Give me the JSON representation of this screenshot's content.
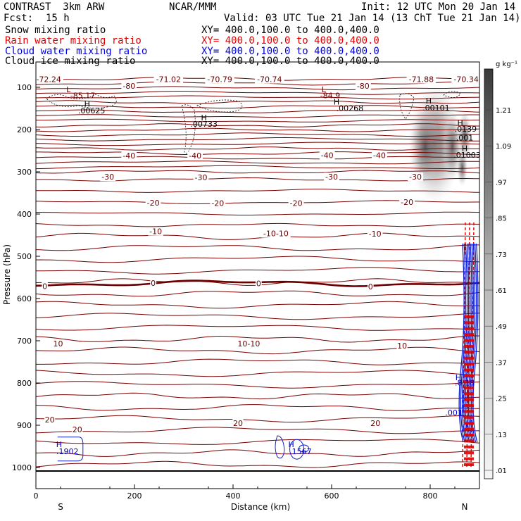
{
  "header": {
    "model": "CONTRAST  3km ARW",
    "org": "NCAR/MMM",
    "init": "Init: 12 UTC Mon 20 Jan 14",
    "fcst_label": "Fcst:",
    "fcst_value": "15 h",
    "valid": "Valid: 03 UTC Tue 21 Jan 14 (13 ChT Tue 21 Jan 14)"
  },
  "fields": [
    {
      "name": "Snow mixing ratio",
      "xy": "XY= 400.0,100.0 to 400.0,400.0",
      "color": "#000000"
    },
    {
      "name": "Rain water mixing ratio",
      "xy": "XY= 400.0,100.0 to 400.0,400.0",
      "color": "#e00000"
    },
    {
      "name": "Cloud water mixing ratio",
      "xy": "XY= 400.0,100.0 to 400.0,400.0",
      "color": "#0000e0"
    },
    {
      "name": "Cloud ice mixing ratio",
      "xy": "XY= 400.0,100.0 to 400.0,400.0",
      "color": "#000000"
    }
  ],
  "chart_data": {
    "type": "contour",
    "xlabel": "Distance (km)",
    "ylabel": "Pressure (hPa)",
    "xlim": [
      0,
      900
    ],
    "ylim": [
      1050,
      40
    ],
    "x_ticks": [
      0,
      200,
      400,
      600,
      800
    ],
    "y_ticks": [
      100,
      200,
      300,
      400,
      500,
      600,
      700,
      800,
      900,
      1000
    ],
    "x_end_labels": {
      "left": "S",
      "right": "N"
    },
    "temperature_contours": [
      {
        "value": 20,
        "label": "20",
        "p": 912
      },
      {
        "value": 10,
        "label": "10",
        "p": 706
      },
      {
        "value": 0,
        "label": "0",
        "p": 564
      },
      {
        "value": -10,
        "label": "-10",
        "p": 447
      },
      {
        "value": -20,
        "label": "-20",
        "p": 375
      },
      {
        "value": -30,
        "label": "-30",
        "p": 314
      },
      {
        "value": -40,
        "label": "-40",
        "p": 264
      },
      {
        "value": -80,
        "label": "-80",
        "p": 97
      }
    ],
    "contour_labels": [
      {
        "text": "20",
        "x": 28,
        "p": 887
      },
      {
        "text": "20",
        "x": 84,
        "p": 910
      },
      {
        "text": "20",
        "x": 410,
        "p": 895
      },
      {
        "text": "20",
        "x": 689,
        "p": 895
      },
      {
        "text": "10",
        "x": 45,
        "p": 707
      },
      {
        "text": "10-10",
        "x": 432,
        "p": 707
      },
      {
        "text": "10",
        "x": 743,
        "p": 712
      },
      {
        "text": "0",
        "x": 18,
        "p": 571
      },
      {
        "text": "0",
        "x": 238,
        "p": 563
      },
      {
        "text": "0",
        "x": 452,
        "p": 564
      },
      {
        "text": "0",
        "x": 679,
        "p": 572
      },
      {
        "text": "-10",
        "x": 243,
        "p": 441
      },
      {
        "text": "-10-10",
        "x": 487,
        "p": 446
      },
      {
        "text": "-10",
        "x": 688,
        "p": 447
      },
      {
        "text": "-20",
        "x": 238,
        "p": 373
      },
      {
        "text": "-20",
        "x": 369,
        "p": 374
      },
      {
        "text": "-20",
        "x": 528,
        "p": 374
      },
      {
        "text": "-20",
        "x": 753,
        "p": 372
      },
      {
        "text": "-30",
        "x": 146,
        "p": 312
      },
      {
        "text": "-30",
        "x": 335,
        "p": 313
      },
      {
        "text": "-30",
        "x": 600,
        "p": 312
      },
      {
        "text": "-30",
        "x": 770,
        "p": 312
      },
      {
        "text": "-40",
        "x": 189,
        "p": 262
      },
      {
        "text": "-40",
        "x": 323,
        "p": 262
      },
      {
        "text": "-40",
        "x": 591,
        "p": 261
      },
      {
        "text": "-40",
        "x": 697,
        "p": 261
      },
      {
        "text": "-80",
        "x": 189,
        "p": 97
      },
      {
        "text": "-80",
        "x": 664,
        "p": 97
      },
      {
        "text": "-72.24",
        "x": 26,
        "p": 81
      },
      {
        "text": "-71.02",
        "x": 269,
        "p": 81
      },
      {
        "text": "-70.79",
        "x": 373,
        "p": 81
      },
      {
        "text": "-70.74",
        "x": 474,
        "p": 81
      },
      {
        "text": "-71.88",
        "x": 782,
        "p": 81
      },
      {
        "text": "-70.34",
        "x": 873,
        "p": 81
      }
    ],
    "extrema": [
      {
        "type": "L",
        "x": 66,
        "p": 105,
        "value": "-85.17",
        "vx": 95,
        "vp": 119
      },
      {
        "type": "L",
        "x": 584,
        "p": 105,
        "value": "-84.9",
        "vx": 597,
        "vp": 119
      },
      {
        "type": "H",
        "x": 104,
        "p": 139,
        "value": ".00625",
        "vx": 113,
        "vp": 155
      },
      {
        "type": "H",
        "x": 610,
        "p": 134,
        "value": ".00268",
        "vx": 637,
        "vp": 149
      },
      {
        "type": "H",
        "x": 341,
        "p": 172,
        "value": ".00733",
        "vx": 341,
        "vp": 187
      },
      {
        "type": "H",
        "x": 797,
        "p": 132,
        "value": ".00101",
        "vx": 812,
        "vp": 148
      },
      {
        "type": "H",
        "x": 861,
        "p": 184,
        "value": ".0139",
        "vx": 872,
        "vp": 198
      },
      {
        "type": "H",
        "x": 870,
        "p": 244,
        "value": ".01003",
        "vx": 875,
        "vp": 260
      },
      {
        "type": "value",
        "x": 870,
        "p": 219,
        "value": ".001",
        "vx": 870,
        "vp": 219
      },
      {
        "type": "H",
        "x": 47,
        "p": 945,
        "value": ".1902",
        "vx": 64,
        "vp": 962
      },
      {
        "type": "H",
        "x": 518,
        "p": 945,
        "value": ".1567",
        "vx": 537,
        "vp": 962
      },
      {
        "type": "H",
        "x": 857,
        "p": 787,
        "value": ".8.18",
        "vx": 870,
        "vp": 799
      },
      {
        "type": "value",
        "x": 848,
        "p": 870,
        "value": ".001",
        "vx": 848,
        "vp": 870
      }
    ],
    "snow_colorbar": {
      "unit": "g kg⁻¹",
      "levels": [
        ".01",
        ".13",
        ".25",
        ".37",
        ".49",
        ".61",
        ".73",
        ".85",
        ".97",
        "1.09",
        "1.21"
      ]
    }
  }
}
